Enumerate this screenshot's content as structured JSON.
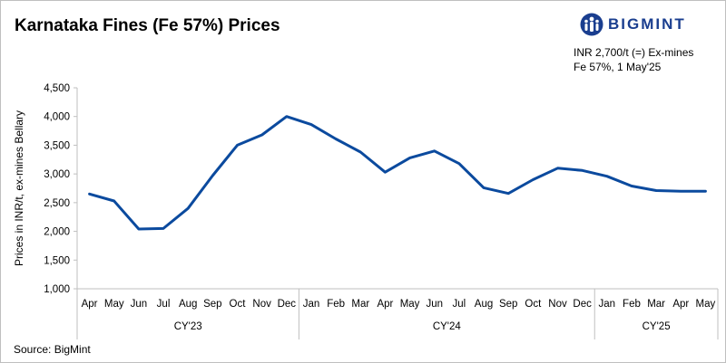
{
  "header": {
    "title": "Karnataka Fines (Fe 57%) Prices",
    "brand": "BIGMINT",
    "note_line1": "INR 2,700/t (=) Ex-mines",
    "note_line2": "Fe 57%, 1 May'25"
  },
  "footer": {
    "source": "Source: BigMint"
  },
  "colors": {
    "line": "#0b4a9e",
    "axis": "#bfbfbf",
    "brand": "#1a3e8f"
  },
  "chart_data": {
    "type": "line",
    "title": "Karnataka Fines (Fe 57%) Prices",
    "ylabel": "Prices in INR/t, ex-mines Bellary",
    "xlabel": "",
    "ylim": [
      1000,
      4500
    ],
    "yticks": [
      "1,000",
      "1,500",
      "2,000",
      "2,500",
      "3,000",
      "3,500",
      "4,000",
      "4,500"
    ],
    "ytick_values": [
      1000,
      1500,
      2000,
      2500,
      3000,
      3500,
      4000,
      4500
    ],
    "grid": false,
    "categories": [
      "Apr",
      "May",
      "Jun",
      "Jul",
      "Aug",
      "Sep",
      "Oct",
      "Nov",
      "Dec",
      "Jan",
      "Feb",
      "Mar",
      "Apr",
      "May",
      "Jun",
      "Jul",
      "Aug",
      "Sep",
      "Oct",
      "Nov",
      "Dec",
      "Jan",
      "Feb",
      "Mar",
      "Apr",
      "May"
    ],
    "groups": [
      {
        "label": "CY'23",
        "count": 9
      },
      {
        "label": "CY'24",
        "count": 12
      },
      {
        "label": "CY'25",
        "count": 5
      }
    ],
    "series": [
      {
        "values": [
          2650,
          2530,
          2040,
          2050,
          2400,
          2970,
          3500,
          3680,
          4000,
          3860,
          3610,
          3380,
          3030,
          3280,
          3400,
          3180,
          2760,
          2660,
          2900,
          3100,
          3060,
          2960,
          2790,
          2710,
          2700,
          2700
        ]
      }
    ]
  }
}
